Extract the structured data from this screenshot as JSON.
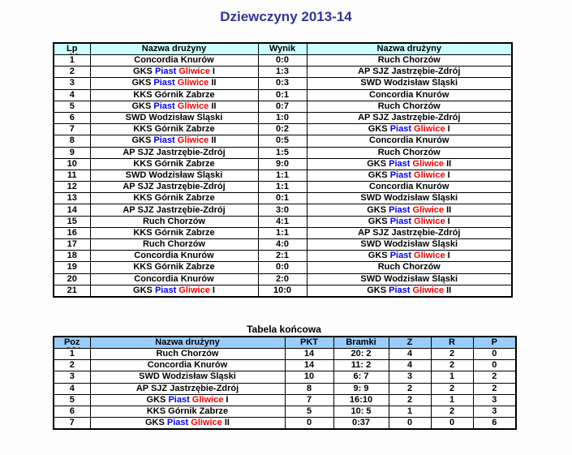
{
  "page_title": "Dziewczyny 2013-14",
  "colors": {
    "title_text": "#333399",
    "results_header_bg": "#ccffff",
    "final_header_bg": "#99ccff",
    "border": "#000000",
    "word_piast": "#0000ff",
    "word_gliwice": "#ff0000",
    "spellcheck_underline": "#ff0000"
  },
  "word_colors": {
    "Piast": "#0000ff",
    "Gliwice": "#ff0000"
  },
  "spellcheck_underlined_headers": [
    "Lp",
    "Poz"
  ],
  "results_table": {
    "headers": [
      "Lp",
      "Nazwa drużyny",
      "Wynik",
      "Nazwa drużyny"
    ],
    "rows": [
      [
        "1",
        "Concordia Knurów",
        "0:0",
        "Ruch Chorzów"
      ],
      [
        "2",
        "GKS Piast Gliwice I",
        "1:3",
        "AP SJZ Jastrzębie-Zdrój"
      ],
      [
        "3",
        "GKS Piast Gliwice II",
        "0:3",
        "SWD Wodzisław Śląski"
      ],
      [
        "4",
        "KKS Górnik Zabrze",
        "0:1",
        "Concordia Knurów"
      ],
      [
        "5",
        "GKS Piast Gliwice II",
        "0:7",
        "Ruch Chorzów"
      ],
      [
        "6",
        "SWD Wodzisław Śląski",
        "1:0",
        "AP SJZ Jastrzębie-Zdrój"
      ],
      [
        "7",
        "KKS Górnik Zabrze",
        "0:2",
        "GKS Piast Gliwice I"
      ],
      [
        "8",
        "GKS Piast Gliwice II",
        "0:5",
        "Concordia Knurów"
      ],
      [
        "9",
        "AP SJZ Jastrzębie-Zdrój",
        "1:5",
        "Ruch Chorzów"
      ],
      [
        "10",
        "KKS Górnik Zabrze",
        "9:0",
        "GKS Piast Gliwice II"
      ],
      [
        "11",
        "SWD Wodzisław Śląski",
        "1:1",
        "GKS Piast Gliwice I"
      ],
      [
        "12",
        "AP SJZ Jastrzębie-Zdrój",
        "1:1",
        "Concordia Knurów"
      ],
      [
        "13",
        "KKS Górnik Zabrze",
        "0:1",
        "SWD Wodzisław Śląski"
      ],
      [
        "14",
        "AP SJZ Jastrzębie-Zdrój",
        "3:0",
        "GKS Piast Gliwice II"
      ],
      [
        "15",
        "Ruch Chorzów",
        "4:1",
        "GKS Piast Gliwice I"
      ],
      [
        "16",
        "KKS Górnik Zabrze",
        "1:1",
        "AP SJZ Jastrzębie-Zdrój"
      ],
      [
        "17",
        "Ruch Chorzów",
        "4:0",
        "SWD Wodzisław Śląski"
      ],
      [
        "18",
        "Concordia Knurów",
        "2:1",
        "GKS Piast Gliwice I"
      ],
      [
        "19",
        "KKS Górnik Zabrze",
        "0:0",
        "Ruch Chorzów"
      ],
      [
        "20",
        "Concordia Knurów",
        "2:0",
        "SWD Wodzisław Śląski"
      ],
      [
        "21",
        "GKS Piast Gliwice I",
        "10:0",
        "GKS Piast Gliwice II"
      ]
    ]
  },
  "final_table": {
    "title": "Tabela końcowa",
    "headers": [
      "Poz",
      "Nazwa drużyny",
      "PKT",
      "Bramki",
      "Z",
      "R",
      "P"
    ],
    "rows": [
      [
        "1",
        "Ruch Chorzów",
        "14",
        "20: 2",
        "4",
        "2",
        "0"
      ],
      [
        "2",
        "Concordia Knurów",
        "14",
        "11: 2",
        "4",
        "2",
        "0"
      ],
      [
        "3",
        "SWD Wodzisław Śląski",
        "10",
        "6: 7",
        "3",
        "1",
        "2"
      ],
      [
        "4",
        "AP SJZ Jastrzębie-Zdrój",
        "8",
        "9: 9",
        "2",
        "2",
        "2"
      ],
      [
        "5",
        "GKS Piast Gliwice I",
        "7",
        "16:10",
        "2",
        "1",
        "3"
      ],
      [
        "6",
        "KKS Górnik Zabrze",
        "5",
        "10: 5",
        "1",
        "2",
        "3"
      ],
      [
        "7",
        "GKS Piast Gliwice II",
        "0",
        "0:37",
        "0",
        "0",
        "6"
      ]
    ]
  }
}
